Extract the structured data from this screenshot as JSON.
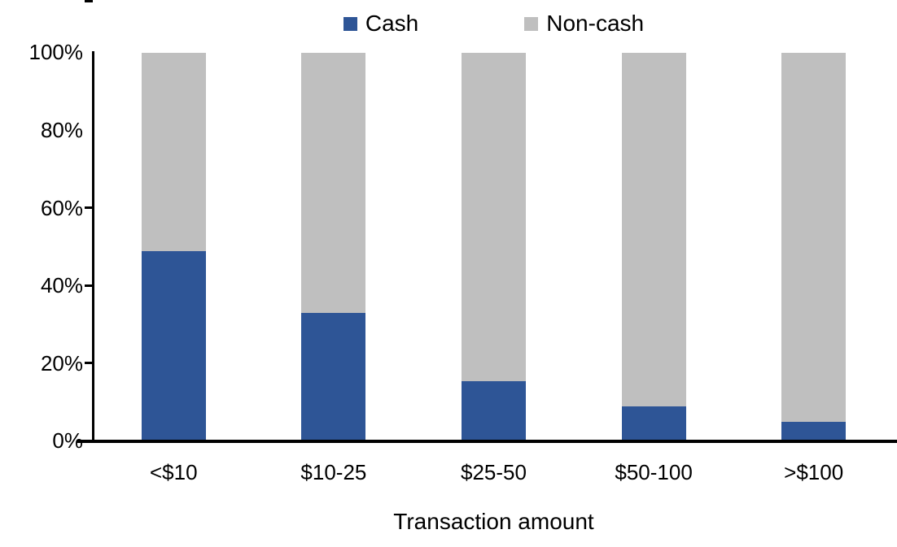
{
  "chart_data": {
    "type": "bar",
    "stacked": true,
    "orientation": "vertical",
    "title": "",
    "xlabel": "Transaction amount",
    "ylabel": "",
    "ylim": [
      0,
      100
    ],
    "yticks": [
      "100%",
      "80%",
      "60%",
      "40%",
      "20%",
      "0%"
    ],
    "grid": false,
    "legend_position": "top-center",
    "categories": [
      "<$10",
      "$10-25",
      "$25-50",
      "$50-100",
      ">$100"
    ],
    "series": [
      {
        "name": "Cash",
        "color": "#2E5596",
        "values": [
          49,
          33,
          15.5,
          9,
          5
        ]
      },
      {
        "name": "Non-cash",
        "color": "#BFBFBF",
        "values": [
          51,
          67,
          84.5,
          91,
          95
        ]
      }
    ]
  },
  "legend": {
    "items": [
      {
        "label": "Cash",
        "color": "#2E5596"
      },
      {
        "label": "Non-cash",
        "color": "#BFBFBF"
      }
    ]
  },
  "axis": {
    "line_color": "#000000",
    "text_color": "#000000"
  }
}
